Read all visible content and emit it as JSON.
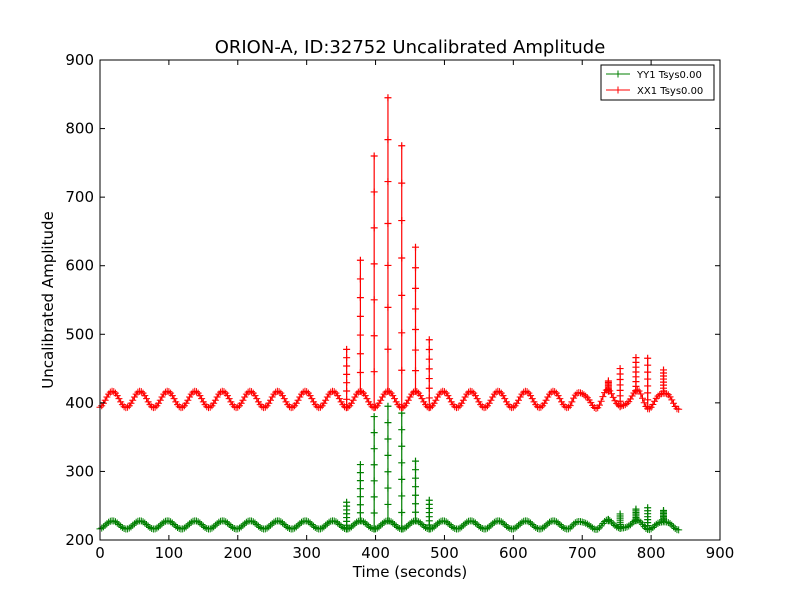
{
  "chart_data": {
    "type": "line",
    "title": "ORION-A, ID:32752 Uncalibrated Amplitude",
    "xlabel": "Time (seconds)",
    "ylabel": "Uncalibrated Amplitude",
    "xlim": [
      0,
      900
    ],
    "ylim": [
      200,
      900
    ],
    "xticks": [
      0,
      100,
      200,
      300,
      400,
      500,
      600,
      700,
      800,
      900
    ],
    "yticks": [
      200,
      300,
      400,
      500,
      600,
      700,
      800,
      900
    ],
    "x_range": [
      0,
      840
    ],
    "legend_position": "top-right",
    "grid": false,
    "marker": "+",
    "series": [
      {
        "name": "YY1 Tsys0.00",
        "color": "#007f00",
        "baseline": 222,
        "oscillation_amplitude": 6,
        "oscillation_period": 40,
        "spikes": [
          {
            "x": 358,
            "peak": 255
          },
          {
            "x": 378,
            "peak": 310
          },
          {
            "x": 398,
            "peak": 380
          },
          {
            "x": 418,
            "peak": 395
          },
          {
            "x": 438,
            "peak": 385
          },
          {
            "x": 458,
            "peak": 315
          },
          {
            "x": 478,
            "peak": 258
          },
          {
            "x": 738,
            "peak": 230
          },
          {
            "x": 755,
            "peak": 238
          },
          {
            "x": 778,
            "peak": 245
          },
          {
            "x": 795,
            "peak": 247
          },
          {
            "x": 818,
            "peak": 243
          }
        ]
      },
      {
        "name": "XX1 Tsys0.00",
        "color": "#ff0000",
        "baseline": 405,
        "oscillation_amplitude": 12,
        "oscillation_period": 40,
        "spikes": [
          {
            "x": 358,
            "peak": 478
          },
          {
            "x": 378,
            "peak": 608
          },
          {
            "x": 398,
            "peak": 760
          },
          {
            "x": 418,
            "peak": 845
          },
          {
            "x": 438,
            "peak": 775
          },
          {
            "x": 458,
            "peak": 627
          },
          {
            "x": 478,
            "peak": 492
          },
          {
            "x": 738,
            "peak": 432
          },
          {
            "x": 755,
            "peak": 450
          },
          {
            "x": 778,
            "peak": 466
          },
          {
            "x": 795,
            "peak": 465
          },
          {
            "x": 818,
            "peak": 448
          }
        ]
      }
    ]
  }
}
